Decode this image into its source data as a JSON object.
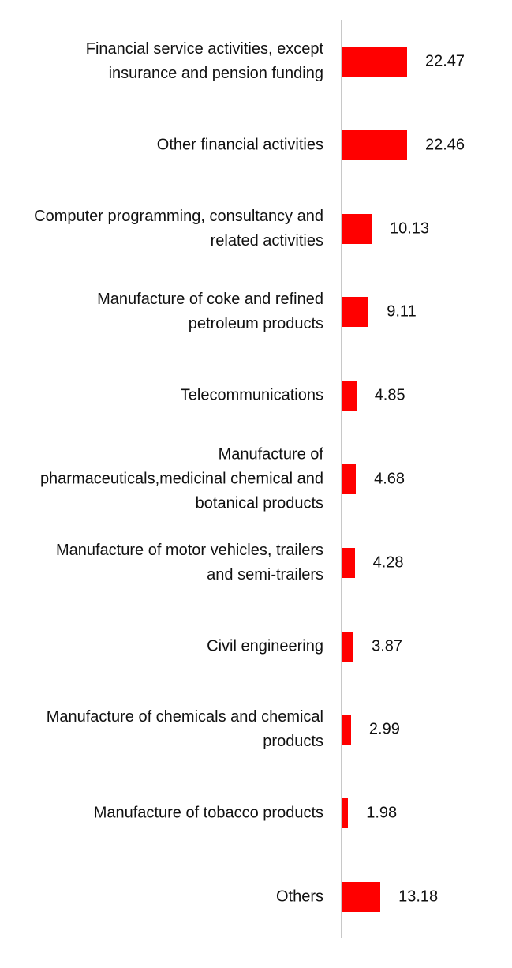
{
  "chart_data": {
    "type": "bar",
    "orientation": "horizontal",
    "color": "#ff0000",
    "categories": [
      "Financial service activities, except insurance and pension funding",
      "Other financial activities",
      "Computer programming, consultancy and related activities",
      "Manufacture of coke and refined petroleum products",
      "Telecommunications",
      "Manufacture of pharmaceuticals,medicinal chemical and botanical products",
      "Manufacture of motor vehicles, trailers and semi-trailers",
      "Civil engineering",
      "Manufacture of chemicals and chemical products",
      "Manufacture of tobacco products",
      "Others"
    ],
    "values": [
      22.47,
      22.46,
      10.13,
      9.11,
      4.85,
      4.68,
      4.28,
      3.87,
      2.99,
      1.98,
      13.18
    ]
  }
}
